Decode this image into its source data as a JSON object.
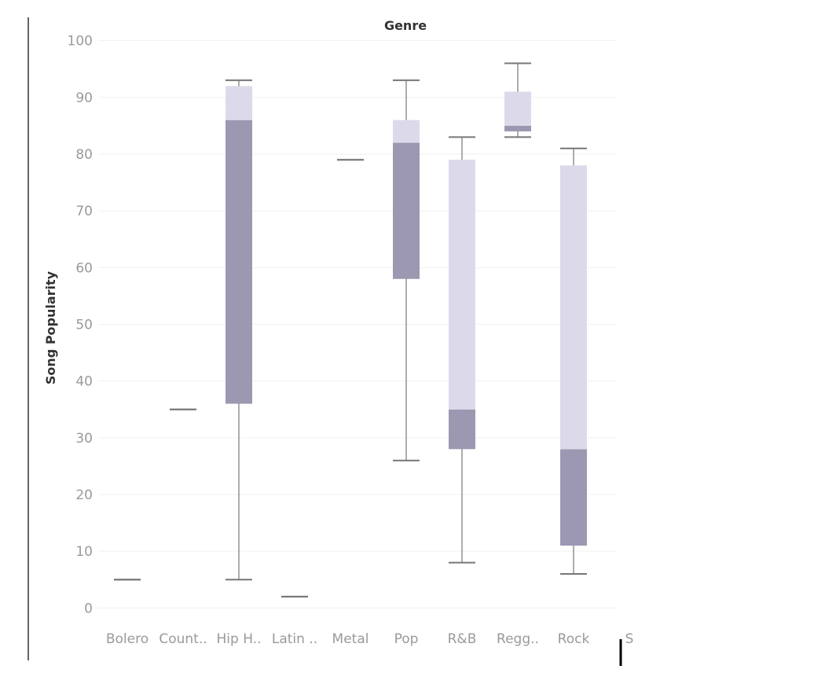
{
  "chart_data": {
    "type": "boxplot",
    "title": "Genre",
    "xlabel": "",
    "ylabel": "Song Popularity",
    "ylim": [
      -3,
      103
    ],
    "yticks": [
      0,
      10,
      20,
      30,
      40,
      50,
      60,
      70,
      80,
      90,
      100
    ],
    "grid": true,
    "colors": {
      "lower_box": "#9c98b2",
      "upper_box": "#dcdaea",
      "whisker": "#777777",
      "axis": "#666666"
    },
    "categories": [
      "Bolero",
      "Count..",
      "Hip H..",
      "Latin ..",
      "Metal",
      "Pop",
      "R&B",
      "Regg..",
      "Rock",
      "S"
    ],
    "boxes": [
      {
        "category": "Bolero",
        "min": 5,
        "q1": 5,
        "median": 5,
        "q3": 5,
        "max": 5
      },
      {
        "category": "Count..",
        "min": 35,
        "q1": 35,
        "median": 35,
        "q3": 35,
        "max": 35
      },
      {
        "category": "Hip H..",
        "min": 5,
        "q1": 36,
        "median": 86,
        "q3": 92,
        "max": 93
      },
      {
        "category": "Latin ..",
        "min": 2,
        "q1": 2,
        "median": 2,
        "q3": 2,
        "max": 2
      },
      {
        "category": "Metal",
        "min": 79,
        "q1": 79,
        "median": 79,
        "q3": 79,
        "max": 79
      },
      {
        "category": "Pop",
        "min": 26,
        "q1": 58,
        "median": 82,
        "q3": 86,
        "max": 93
      },
      {
        "category": "R&B",
        "min": 8,
        "q1": 28,
        "median": 35,
        "q3": 79,
        "max": 83
      },
      {
        "category": "Regg..",
        "min": 83,
        "q1": 84,
        "median": 85,
        "q3": 91,
        "max": 96
      },
      {
        "category": "Rock",
        "min": 6,
        "q1": 11,
        "median": 28,
        "q3": 78,
        "max": 81
      }
    ]
  }
}
